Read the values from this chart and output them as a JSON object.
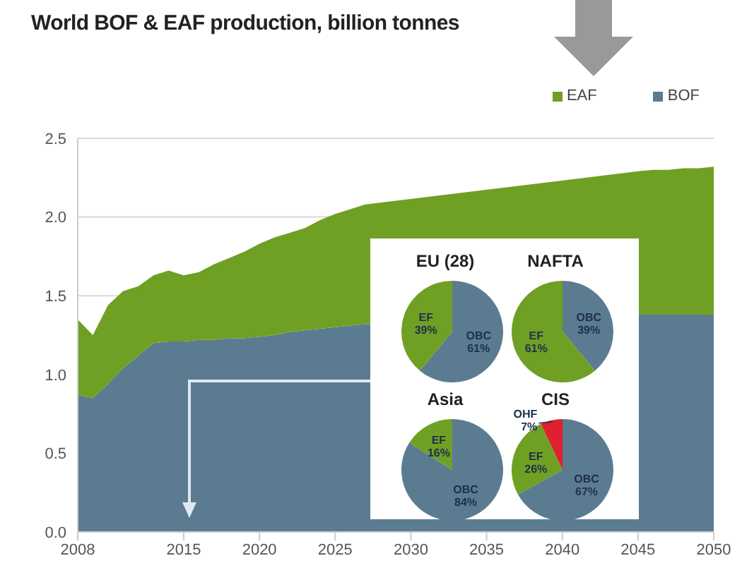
{
  "chart_data": [
    {
      "type": "area",
      "title": "World BOF & EAF production, billion tonnes",
      "stacked": true,
      "x": [
        2008,
        2009,
        2010,
        2011,
        2012,
        2013,
        2014,
        2015,
        2016,
        2017,
        2018,
        2019,
        2020,
        2021,
        2022,
        2023,
        2024,
        2025,
        2026,
        2027,
        2028,
        2029,
        2030,
        2031,
        2032,
        2033,
        2034,
        2035,
        2036,
        2037,
        2038,
        2039,
        2040,
        2041,
        2042,
        2043,
        2044,
        2045,
        2046,
        2047,
        2048,
        2049,
        2050
      ],
      "series": [
        {
          "name": "BOF",
          "color": "#5b7c90",
          "values": [
            0.87,
            0.85,
            0.94,
            1.04,
            1.12,
            1.2,
            1.21,
            1.21,
            1.22,
            1.22,
            1.23,
            1.23,
            1.24,
            1.25,
            1.27,
            1.28,
            1.29,
            1.3,
            1.31,
            1.32,
            null,
            null,
            null,
            null,
            null,
            null,
            null,
            null,
            null,
            null,
            null,
            null,
            null,
            null,
            null,
            null,
            null,
            1.38,
            1.38,
            1.38,
            1.38,
            1.38,
            1.38
          ]
        },
        {
          "name": "EAF",
          "color": "#6fa024",
          "values": [
            0.48,
            0.4,
            0.5,
            0.49,
            0.44,
            0.43,
            0.45,
            0.42,
            0.43,
            0.48,
            0.51,
            0.55,
            0.59,
            0.62,
            0.63,
            0.65,
            0.69,
            0.72,
            0.74,
            0.76,
            null,
            null,
            null,
            null,
            null,
            null,
            null,
            null,
            null,
            null,
            null,
            null,
            null,
            null,
            null,
            null,
            null,
            0.91,
            0.92,
            0.92,
            0.93,
            0.93,
            0.94
          ]
        }
      ],
      "xlim": [
        2008,
        2050
      ],
      "xticks": [
        2008,
        2015,
        2020,
        2025,
        2030,
        2035,
        2040,
        2045,
        2050
      ],
      "ylim": [
        0,
        2.5
      ],
      "yticks": [
        {
          "value": 0,
          "label": "0.0"
        },
        {
          "value": 0.5,
          "label": "0.5"
        },
        {
          "value": 1,
          "label": "1.0"
        },
        {
          "value": 1.5,
          "label": "1.5"
        },
        {
          "value": 2,
          "label": "2.0"
        },
        {
          "value": 2.5,
          "label": "2.5"
        }
      ],
      "grid": "y",
      "legend": "top right"
    },
    {
      "type": "pie",
      "title": "EU (28)",
      "categories": [
        "OBC",
        "EF"
      ],
      "values": [
        61,
        39
      ],
      "colors": [
        "#5b7c90",
        "#6fa024"
      ],
      "value_labels": [
        "61%",
        "39%"
      ]
    },
    {
      "type": "pie",
      "title": "NAFTA",
      "categories": [
        "OBC",
        "EF"
      ],
      "values": [
        39,
        61
      ],
      "colors": [
        "#5b7c90",
        "#6fa024"
      ],
      "value_labels": [
        "39%",
        "61%"
      ]
    },
    {
      "type": "pie",
      "title": "Asia",
      "categories": [
        "OBC",
        "EF"
      ],
      "values": [
        84,
        16
      ],
      "colors": [
        "#5b7c90",
        "#6fa024"
      ],
      "value_labels": [
        "84%",
        "16%"
      ]
    },
    {
      "type": "pie",
      "title": "CIS",
      "categories": [
        "OBC",
        "EF",
        "OHF"
      ],
      "values": [
        67,
        26,
        7
      ],
      "colors": [
        "#5b7c90",
        "#6fa024",
        "#e0202e"
      ],
      "value_labels": [
        "67%",
        "26%",
        "7%"
      ]
    }
  ]
}
